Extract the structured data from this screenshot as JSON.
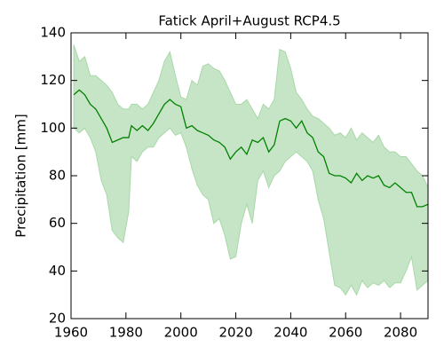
{
  "chart_data": {
    "type": "line",
    "title": "Fatick April+August RCP4.5",
    "y_label": "Precipitation [mm]",
    "x": [
      1961,
      1963,
      1965,
      1967,
      1969,
      1971,
      1973,
      1975,
      1977,
      1979,
      1981,
      1982,
      1984,
      1986,
      1988,
      1990,
      1992,
      1994,
      1996,
      1998,
      2000,
      2002,
      2004,
      2006,
      2008,
      2010,
      2012,
      2014,
      2016,
      2018,
      2020,
      2022,
      2024,
      2026,
      2028,
      2030,
      2032,
      2034,
      2036,
      2038,
      2040,
      2042,
      2044,
      2046,
      2048,
      2050,
      2052,
      2054,
      2056,
      2058,
      2060,
      2062,
      2064,
      2066,
      2068,
      2070,
      2072,
      2074,
      2076,
      2078,
      2080,
      2082,
      2084,
      2086,
      2088,
      2090
    ],
    "line": {
      "color": "#008000",
      "values": [
        114,
        116,
        114,
        110,
        108,
        104,
        100,
        94,
        95,
        96,
        96,
        101,
        99,
        101,
        99,
        102,
        106,
        110,
        112,
        110,
        109,
        100,
        101,
        99,
        98,
        97,
        95,
        94,
        92,
        87,
        90,
        92,
        89,
        95,
        94,
        96,
        90,
        93,
        103,
        104,
        103,
        100,
        103,
        98,
        96,
        90,
        88,
        81,
        80,
        80,
        79,
        77,
        81,
        78,
        80,
        79,
        80,
        76,
        75,
        77,
        75,
        73,
        73,
        67,
        67,
        68
      ]
    },
    "band": {
      "color": "#c6e5c6",
      "edge_color": "#a8d8a8",
      "upper": [
        135,
        128,
        130,
        122,
        122,
        120,
        118,
        115,
        110,
        108,
        108,
        110,
        110,
        108,
        110,
        115,
        120,
        128,
        132,
        122,
        113,
        112,
        120,
        118,
        126,
        127,
        125,
        124,
        120,
        115,
        110,
        110,
        112,
        108,
        104,
        110,
        108,
        112,
        133,
        132,
        125,
        115,
        112,
        108,
        105,
        104,
        102,
        100,
        97,
        98,
        96,
        100,
        95,
        98,
        96,
        94,
        97,
        92,
        90,
        90,
        88,
        88,
        85,
        82,
        80,
        75
      ],
      "lower": [
        100,
        98,
        100,
        96,
        90,
        78,
        72,
        57,
        54,
        52,
        65,
        88,
        86,
        90,
        92,
        92,
        96,
        98,
        100,
        97,
        98,
        92,
        83,
        76,
        72,
        70,
        60,
        62,
        55,
        45,
        46,
        60,
        68,
        60,
        78,
        82,
        75,
        80,
        82,
        86,
        88,
        90,
        88,
        86,
        82,
        70,
        62,
        48,
        34,
        33,
        30,
        34,
        30,
        36,
        33,
        35,
        34,
        36,
        33,
        35,
        35,
        40,
        46,
        32,
        34,
        36
      ]
    },
    "xlim": [
      1960,
      2090
    ],
    "xticks": [
      1960,
      1980,
      2000,
      2020,
      2040,
      2060,
      2080
    ],
    "ylim": [
      20,
      140
    ],
    "yticks": [
      20,
      40,
      60,
      80,
      100,
      120,
      140
    ]
  }
}
